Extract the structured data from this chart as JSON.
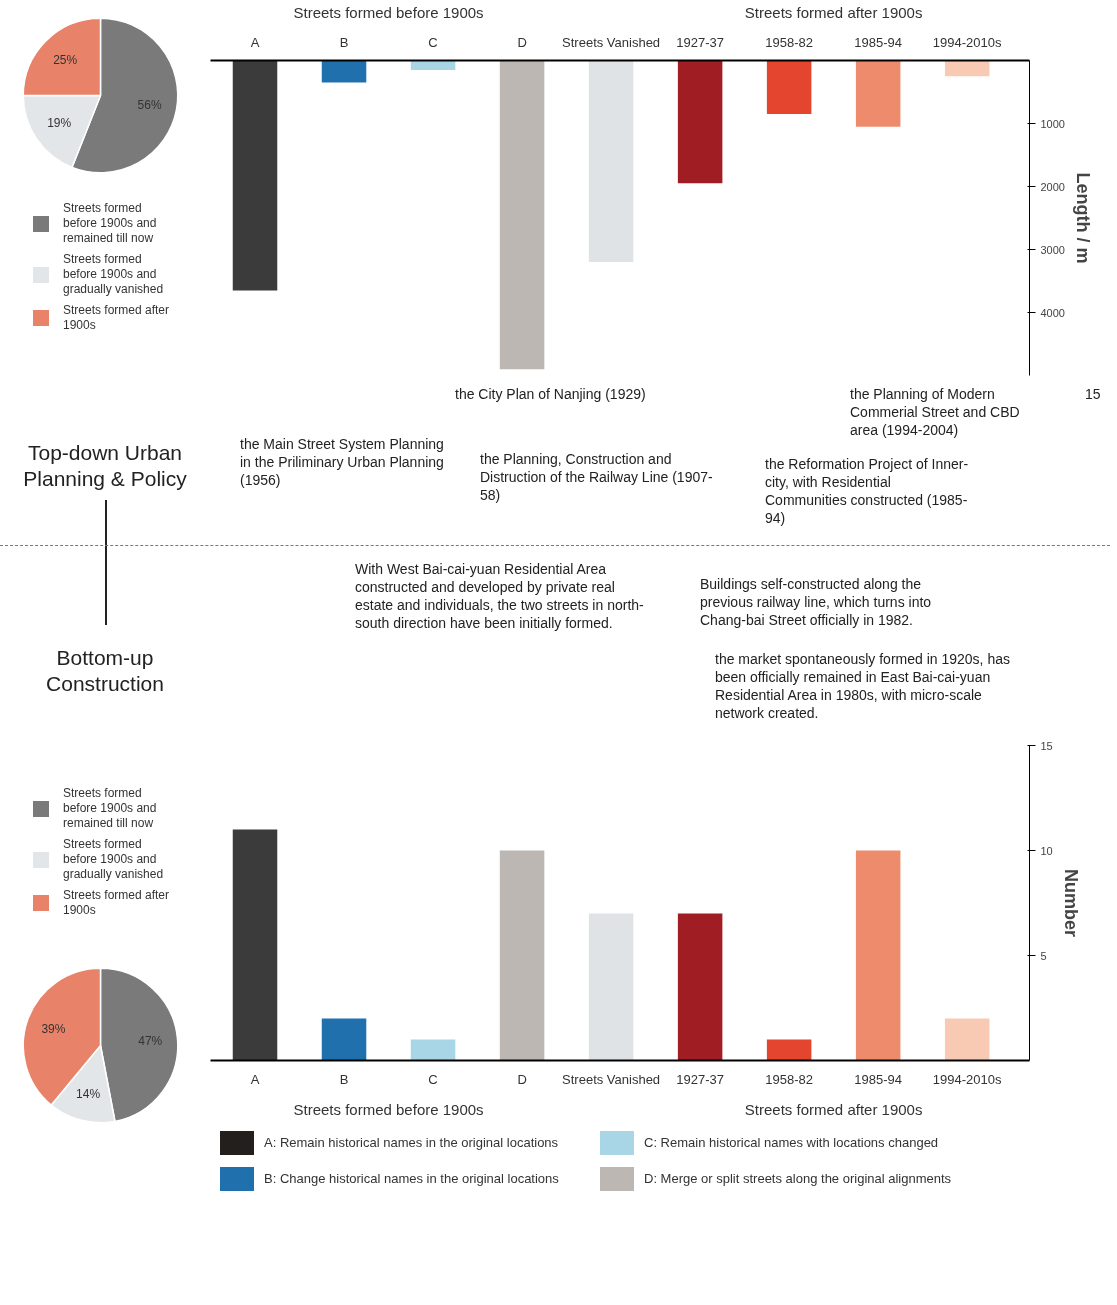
{
  "chart_data": [
    {
      "type": "pie",
      "categories": [
        "Streets formed before 1900s and remained till now",
        "Streets formed before 1900s and gradually vanished",
        "Streets formed after 1900s"
      ],
      "values": [
        56,
        19,
        25
      ],
      "colors": [
        "#7a7a7b",
        "#e3e6e9",
        "#e8836a"
      ],
      "value_labels": [
        "56%",
        "19%",
        "25%"
      ],
      "legend": "bottom"
    },
    {
      "type": "pie",
      "categories": [
        "Streets formed before 1900s and remained till now",
        "Streets formed before 1900s and gradually vanished",
        "Streets formed after 1900s"
      ],
      "values": [
        47,
        14,
        39
      ],
      "colors": [
        "#7a7a7b",
        "#e3e6e9",
        "#e8836a"
      ],
      "value_labels": [
        "47%",
        "14%",
        "39%"
      ],
      "legend": "top"
    },
    {
      "type": "bar",
      "categories": [
        "A",
        "B",
        "C",
        "D",
        "Streets Vanished",
        "1927-37",
        "1958-82",
        "1985-94",
        "1994-2010s"
      ],
      "values": [
        3650,
        350,
        150,
        4900,
        3200,
        1950,
        850,
        1050,
        250
      ],
      "colors": [
        "#3b3b3b",
        "#2170ae",
        "#a9d6e6",
        "#bcb7b3",
        "#dfe3e6",
        "#a01d24",
        "#e3452f",
        "#ee8b6c",
        "#f8c9b3"
      ],
      "ylabel": "Length / m",
      "ylim": [
        5000,
        0
      ],
      "yticks": [
        1000,
        2000,
        3000,
        4000
      ],
      "annotations": [
        "Streets formed before 1900s",
        "Streets formed after 1900s",
        "Top-down Urban Planning & Policy",
        "the Main Street System Planning in the Priliminary Urban Planning (1956)",
        "the City Plan of Nanjing (1929)",
        "the Planning, Construction and Distruction of the Railway Line (1907-58)",
        "the Reformation Project of Inner-city, with Residential Communities constructed (1985-94)",
        "the Planning of Modern Commerial Street and CBD area (1994-2004)",
        "15"
      ]
    },
    {
      "type": "bar",
      "categories": [
        "A",
        "B",
        "C",
        "D",
        "Streets Vanished",
        "1927-37",
        "1958-82",
        "1985-94",
        "1994-2010s"
      ],
      "values": [
        11,
        2,
        1,
        10,
        7,
        7,
        1,
        10,
        2
      ],
      "colors": [
        "#3b3b3b",
        "#2170ae",
        "#a9d6e6",
        "#bcb7b3",
        "#dfe3e6",
        "#a01d24",
        "#e3452f",
        "#ee8b6c",
        "#f8c9b3"
      ],
      "ylabel": "Number",
      "ylim": [
        0,
        15
      ],
      "yticks": [
        5,
        10,
        15
      ],
      "annotations": [
        "Streets formed before 1900s",
        "Streets formed after 1900s",
        "Bottom-up Construction",
        "With West Bai-cai-yuan Residential Area constructed and developed by private real estate and individuals, the two streets in north-south direction have been initially formed.",
        "Buildings self-constructed along the previous railway line, which turns into Chang-bai Street officially in 1982.",
        "the market spontaneously formed in 1920s, has been officially remained in East Bai-cai-yuan Residential Area in 1980s, with micro-scale network created."
      ]
    },
    {
      "type": "other",
      "colors": [
        "#231f1c",
        "#a9d6e6",
        "#2170ae",
        "#bcb7b3"
      ],
      "annotations": [
        "A: Remain historical names in the original locations",
        "C: Remain historical names with locations changed",
        "B: Change historical names in the original locations",
        "D: Merge or split streets along the original alignments"
      ]
    }
  ]
}
